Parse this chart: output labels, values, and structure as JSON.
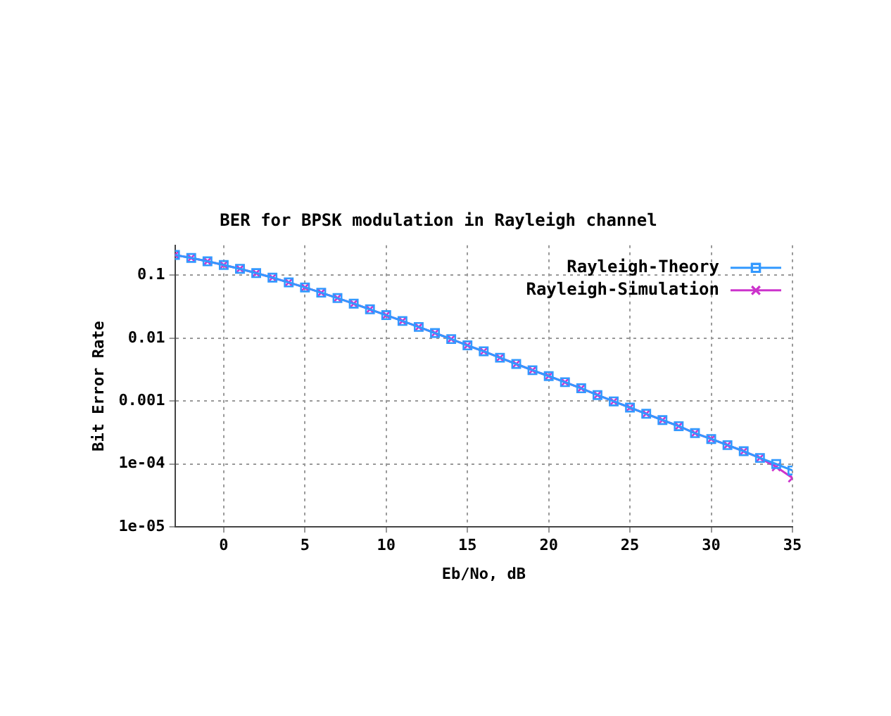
{
  "chart_data": {
    "type": "line",
    "title": "BER for BPSK modulation in Rayleigh channel",
    "xlabel": "Eb/No, dB",
    "ylabel": "Bit Error Rate",
    "x": [
      -3,
      -2,
      -1,
      0,
      1,
      2,
      3,
      4,
      5,
      6,
      7,
      8,
      9,
      10,
      11,
      12,
      13,
      14,
      15,
      16,
      17,
      18,
      19,
      20,
      21,
      22,
      23,
      24,
      25,
      26,
      27,
      28,
      29,
      30,
      31,
      32,
      33,
      34,
      35
    ],
    "series": [
      {
        "name": "Rayleigh-Theory",
        "color": "#3399ff",
        "marker": "square",
        "values": [
          0.211,
          0.189,
          0.167,
          0.146,
          0.127,
          0.1085,
          0.0919,
          0.0771,
          0.0642,
          0.053,
          0.0435,
          0.0355,
          0.0288,
          0.0233,
          0.0188,
          0.0151,
          0.0121,
          0.0097,
          0.0077,
          0.0062,
          0.0049,
          0.0039,
          0.0031,
          0.0025,
          0.002,
          0.0016,
          0.00125,
          0.00099,
          0.00079,
          0.00063,
          0.0005,
          0.0004,
          0.00031,
          0.00025,
          0.0002,
          0.00016,
          0.000125,
          0.0001,
          7.9e-05
        ]
      },
      {
        "name": "Rayleigh-Simulation",
        "color": "#cc33cc",
        "marker": "cross",
        "values": [
          0.211,
          0.189,
          0.167,
          0.146,
          0.127,
          0.1085,
          0.0919,
          0.0771,
          0.0642,
          0.053,
          0.0435,
          0.0355,
          0.0288,
          0.0233,
          0.0188,
          0.0151,
          0.0121,
          0.0097,
          0.0077,
          0.0062,
          0.0049,
          0.0039,
          0.0031,
          0.0025,
          0.002,
          0.0016,
          0.00125,
          0.00099,
          0.00079,
          0.00063,
          0.0005,
          0.0004,
          0.00031,
          0.00025,
          0.0002,
          0.00016,
          0.000125,
          9e-05,
          6e-05
        ]
      }
    ],
    "log": "y",
    "xlim": [
      -3,
      35
    ],
    "xticks": [
      0,
      5,
      10,
      15,
      20,
      25,
      30,
      35
    ],
    "ylim": [
      1e-05,
      0.3
    ],
    "yticks": [
      0.1,
      0.01,
      0.001,
      {
        "value": 0.0001,
        "label": "1e-04"
      },
      {
        "value": 1e-05,
        "label": "1e-05"
      }
    ],
    "grid": true,
    "legend": "top right",
    "line_style": "solid"
  }
}
